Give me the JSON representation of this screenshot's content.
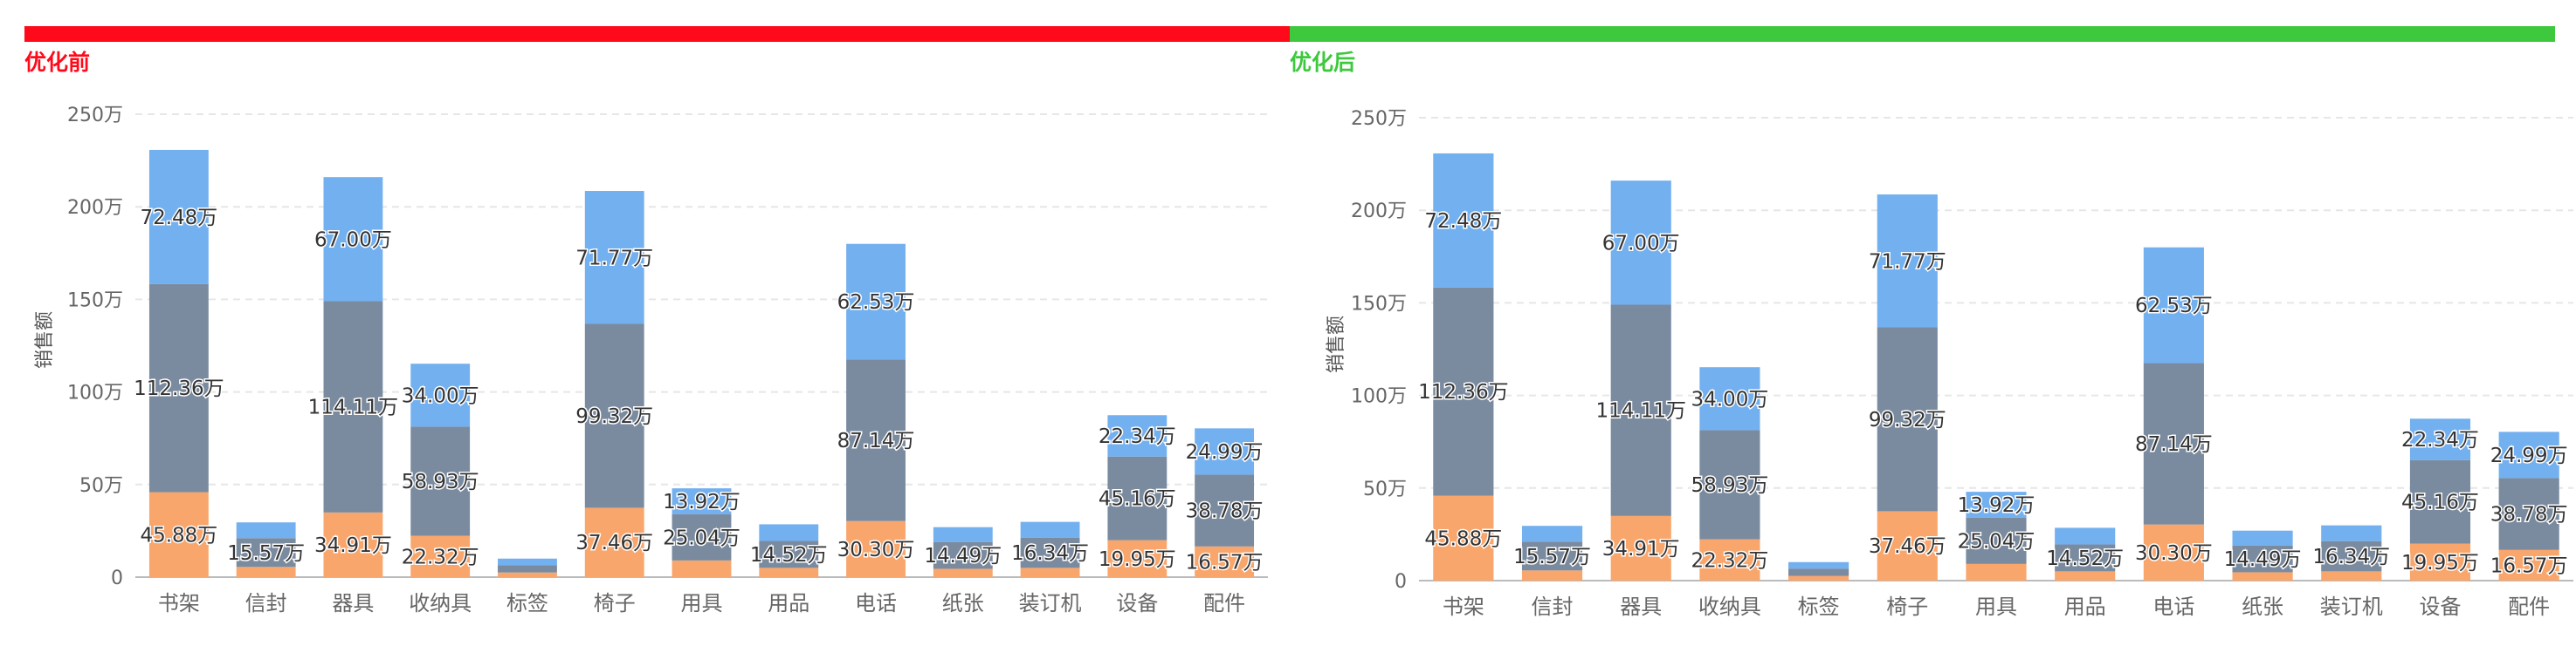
{
  "panels": [
    {
      "title": "优化前",
      "color": "#ff0a1a"
    },
    {
      "title": "优化后",
      "color": "#3ec83e"
    }
  ],
  "colors": {
    "bottom": "#f9a66c",
    "middle": "#7a8ba0",
    "top": "#73b0ef"
  },
  "chart_data": [
    {
      "type": "bar",
      "stacked": true,
      "title": "优化前",
      "xlabel": "",
      "ylabel": "销售额",
      "ylim": [
        0,
        250
      ],
      "yticks": [
        "0",
        "50万",
        "100万",
        "150万",
        "200万",
        "250万"
      ],
      "categories": [
        "书架",
        "信封",
        "器具",
        "收纳具",
        "标签",
        "椅子",
        "用具",
        "用品",
        "电话",
        "纸张",
        "装订机",
        "设备",
        "配件"
      ],
      "series": [
        {
          "name": "bottom",
          "values": [
            45.88,
            5.5,
            34.91,
            22.32,
            2.5,
            37.46,
            9.0,
            5.0,
            30.3,
            4.5,
            5.0,
            19.95,
            16.57
          ],
          "labels": [
            "45.88万",
            "",
            "34.91万",
            "22.32万",
            "",
            "37.46万",
            "",
            "",
            "30.30万",
            "",
            "",
            "19.95万",
            "16.57万"
          ]
        },
        {
          "name": "middle",
          "values": [
            112.36,
            15.57,
            114.11,
            58.93,
            4.0,
            99.32,
            25.04,
            14.52,
            87.14,
            14.49,
            16.34,
            45.16,
            38.78
          ],
          "labels": [
            "112.36万",
            "15.57万",
            "114.11万",
            "58.93万",
            "",
            "99.32万",
            "25.04万",
            "14.52万",
            "87.14万",
            "14.49万",
            "16.34万",
            "45.16万",
            "38.78万"
          ]
        },
        {
          "name": "top",
          "values": [
            72.48,
            8.5,
            67.0,
            34.0,
            3.5,
            71.77,
            13.92,
            9.0,
            62.53,
            8.0,
            8.5,
            22.34,
            24.99
          ],
          "labels": [
            "72.48万",
            "",
            "67.00万",
            "34.00万",
            "",
            "71.77万",
            "13.92万",
            "",
            "62.53万",
            "",
            "",
            "22.34万",
            "24.99万"
          ]
        }
      ]
    },
    {
      "type": "bar",
      "stacked": true,
      "title": "优化后",
      "xlabel": "",
      "ylabel": "销售额",
      "ylim": [
        0,
        250
      ],
      "yticks": [
        "0",
        "50万",
        "100万",
        "150万",
        "200万",
        "250万"
      ],
      "categories": [
        "书架",
        "信封",
        "器具",
        "收纳具",
        "标签",
        "椅子",
        "用具",
        "用品",
        "电话",
        "纸张",
        "装订机",
        "设备",
        "配件"
      ],
      "series": [
        {
          "name": "bottom",
          "values": [
            45.88,
            5.5,
            34.91,
            22.32,
            2.5,
            37.46,
            9.0,
            5.0,
            30.3,
            4.5,
            5.0,
            19.95,
            16.57
          ],
          "labels": [
            "45.88万",
            "",
            "34.91万",
            "22.32万",
            "",
            "37.46万",
            "",
            "",
            "30.30万",
            "",
            "",
            "19.95万",
            "16.57万"
          ]
        },
        {
          "name": "middle",
          "values": [
            112.36,
            15.57,
            114.11,
            58.93,
            4.0,
            99.32,
            25.04,
            14.52,
            87.14,
            14.49,
            16.34,
            45.16,
            38.78
          ],
          "labels": [
            "112.36万",
            "15.57万",
            "114.11万",
            "58.93万",
            "",
            "99.32万",
            "25.04万",
            "14.52万",
            "87.14万",
            "14.49万",
            "16.34万",
            "45.16万",
            "38.78万"
          ]
        },
        {
          "name": "top",
          "values": [
            72.48,
            8.5,
            67.0,
            34.0,
            3.5,
            71.77,
            13.92,
            9.0,
            62.53,
            8.0,
            8.5,
            22.34,
            24.99
          ],
          "labels": [
            "72.48万",
            "",
            "67.00万",
            "34.00万",
            "",
            "71.77万",
            "13.92万",
            "",
            "62.53万",
            "",
            "",
            "22.34万",
            "24.99万"
          ]
        }
      ]
    }
  ]
}
